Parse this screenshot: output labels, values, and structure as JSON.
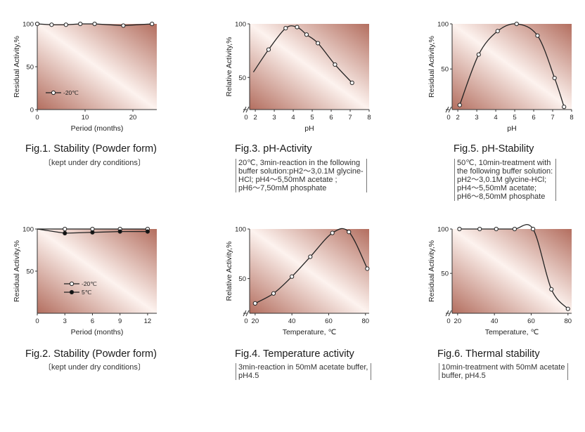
{
  "colors": {
    "plot_light": "#fdf3ef",
    "plot_dark": "#b36e5f",
    "line": "#222222"
  },
  "charts": [
    {
      "id": "fig1",
      "title": "Fig.1. Stability (Powder form)",
      "note_lines": [
        "kept under dry conditions"
      ],
      "note_style": "paren",
      "chart_data": {
        "type": "line",
        "xlabel": "Period (months)",
        "ylabel": "Residual Activity,%",
        "xlim": [
          0,
          25
        ],
        "ylim": [
          0,
          100
        ],
        "xticks": [
          0,
          10,
          20
        ],
        "yticks": [
          0,
          50,
          100
        ],
        "legend_position": "lower-left",
        "series": [
          {
            "name": "-20℃",
            "marker": "open",
            "smooth": false,
            "x": [
              0,
              3,
              6,
              9,
              12,
              18,
              24
            ],
            "y": [
              100,
              99,
              99,
              100,
              100,
              98,
              100
            ]
          }
        ]
      }
    },
    {
      "id": "fig3",
      "title": "Fig.3. pH-Activity",
      "note_lines": [
        "20℃, 3min-reaction in the following",
        "buffer solution:pH2～3,0.1M glycine-",
        "HCl;  pH4～5,50mM acetate ;",
        "pH6～7,50mM phosphate"
      ],
      "note_style": "bracket",
      "chart_data": {
        "type": "line",
        "xlabel": "pH",
        "ylabel": "Relative Activity,%",
        "xlim": [
          1.7,
          8
        ],
        "ylim": [
          20,
          100
        ],
        "xticks": [
          0,
          2,
          3,
          4,
          5,
          6,
          7,
          8
        ],
        "yticks": [
          50,
          100
        ],
        "axis_break": true,
        "series": [
          {
            "name": "",
            "marker": "open",
            "smooth": true,
            "first_marker": false,
            "x": [
              1.9,
              2.7,
              3.6,
              4.2,
              4.7,
              5.3,
              6.2,
              7.1
            ],
            "y": [
              55,
              76,
              96,
              97,
              90,
              82,
              62,
              45
            ]
          }
        ]
      }
    },
    {
      "id": "fig5",
      "title": "Fig.5. pH-Stability",
      "note_lines": [
        "50℃, 10min-treatment with",
        "the following buffer solution:",
        "pH2～3,0.1M glycine-HCl;",
        "pH4～5,50mM acetate;",
        "pH6～8,50mM phosphate"
      ],
      "note_style": "bracket",
      "chart_data": {
        "type": "line",
        "xlabel": "pH",
        "ylabel": "Residual Activity,%",
        "xlim": [
          1.7,
          8
        ],
        "ylim": [
          5,
          100
        ],
        "xticks": [
          0,
          2,
          3,
          4,
          5,
          6,
          7,
          8
        ],
        "yticks": [
          50,
          100
        ],
        "axis_break": true,
        "series": [
          {
            "name": "",
            "marker": "open",
            "smooth": true,
            "x": [
              2.1,
              3.1,
              4.1,
              5.1,
              6.2,
              7.1,
              7.6
            ],
            "y": [
              10,
              66,
              92,
              100,
              87,
              40,
              8
            ]
          }
        ]
      }
    },
    {
      "id": "fig2",
      "title": "Fig.2. Stability (Powder form)",
      "note_lines": [
        "kept under dry conditions"
      ],
      "note_style": "paren",
      "chart_data": {
        "type": "line",
        "xlabel": "Period (months)",
        "ylabel": "Residual Activity,%",
        "xlim": [
          0,
          13
        ],
        "ylim": [
          0,
          100
        ],
        "xticks": [
          0,
          3,
          6,
          9,
          12
        ],
        "yticks": [
          50,
          100
        ],
        "legend_position": "lower-left",
        "series": [
          {
            "name": "-20℃",
            "marker": "open",
            "smooth": false,
            "first_marker": false,
            "x": [
              0,
              3,
              6,
              9,
              12
            ],
            "y": [
              100,
              100,
              100,
              100,
              100
            ]
          },
          {
            "name": "5℃",
            "marker": "filled",
            "smooth": false,
            "first_marker": false,
            "x": [
              0,
              3,
              6,
              9,
              12
            ],
            "y": [
              100,
              95,
              96,
              97,
              97
            ]
          }
        ]
      }
    },
    {
      "id": "fig4",
      "title": "Fig.4. Temperature activity",
      "note_lines": [
        "3min-reaction in 50mM acetate buffer,",
        "pH4.5"
      ],
      "note_style": "bracket",
      "chart_data": {
        "type": "line",
        "xlabel": "Temperature, ℃",
        "ylabel": "Relative Activity,%",
        "xlim": [
          17,
          82
        ],
        "ylim": [
          15,
          100
        ],
        "xticks": [
          0,
          20,
          40,
          60,
          80
        ],
        "yticks": [
          50,
          100
        ],
        "axis_break": true,
        "series": [
          {
            "name": "",
            "marker": "open",
            "smooth": true,
            "x": [
              20,
              30,
              40,
              50,
              62,
              71,
              81
            ],
            "y": [
              25,
              35,
              52,
              72,
              96,
              97,
              60
            ]
          }
        ]
      }
    },
    {
      "id": "fig6",
      "title": "Fig.6. Thermal stability",
      "note_lines": [
        "10min-treatment with 50mM acetate",
        "buffer, pH4.5"
      ],
      "note_style": "bracket",
      "chart_data": {
        "type": "line",
        "xlabel": "Temperature, ℃",
        "ylabel": "Residual Activity,%",
        "xlim": [
          17,
          82
        ],
        "ylim": [
          5,
          100
        ],
        "xticks": [
          0,
          20,
          40,
          60,
          80
        ],
        "yticks": [
          50,
          100
        ],
        "axis_break": true,
        "series": [
          {
            "name": "",
            "marker": "open",
            "smooth": true,
            "x": [
              21,
              32,
              41,
              51,
              61,
              71,
              80
            ],
            "y": [
              100,
              100,
              100,
              100,
              100,
              32,
              10
            ]
          }
        ]
      }
    }
  ]
}
